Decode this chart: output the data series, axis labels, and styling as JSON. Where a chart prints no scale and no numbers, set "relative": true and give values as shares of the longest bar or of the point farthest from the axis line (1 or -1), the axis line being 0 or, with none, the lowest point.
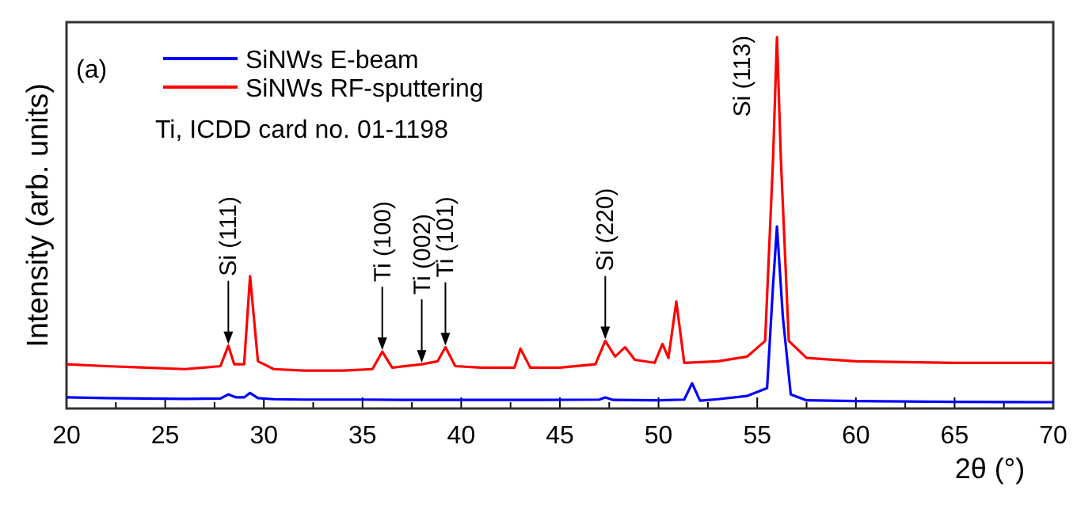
{
  "chart_data": {
    "type": "line",
    "relative": true,
    "xlabel": "2θ (°)",
    "ylabel": "Intensity (arb. units)",
    "xlim": [
      20,
      70
    ],
    "xticks": [
      20,
      {
        "value": 22.5,
        "label": null
      },
      25,
      {
        "value": 27.5,
        "label": null
      },
      30,
      {
        "value": 32.5,
        "label": null
      },
      35,
      {
        "value": 37.5,
        "label": null
      },
      40,
      {
        "value": 42.5,
        "label": null
      },
      45,
      {
        "value": 47.5,
        "label": null
      },
      50,
      {
        "value": 52.5,
        "label": null
      },
      55,
      {
        "value": 57.5,
        "label": null
      },
      60,
      {
        "value": 62.5,
        "label": null
      },
      65,
      {
        "value": 67.5,
        "label": null
      },
      70
    ],
    "tick_labels": "x",
    "legend": "top left",
    "grid": false,
    "marker": "none",
    "line_style": "solid",
    "series": [
      {
        "name": "SiNWs E-beam",
        "color": "#0000ff",
        "x": [
          20,
          22,
          24,
          26,
          27.8,
          28.2,
          28.6,
          29.0,
          29.3,
          29.7,
          30.5,
          32,
          35,
          38,
          41,
          44,
          47.0,
          47.3,
          47.7,
          50,
          51.3,
          51.7,
          52.1,
          53,
          54.5,
          55.5,
          55.8,
          56.0,
          56.3,
          56.7,
          57.5,
          60,
          65,
          70
        ],
        "values": [
          0.03,
          0.028,
          0.027,
          0.026,
          0.027,
          0.038,
          0.03,
          0.03,
          0.042,
          0.028,
          0.025,
          0.024,
          0.024,
          0.023,
          0.023,
          0.023,
          0.024,
          0.03,
          0.023,
          0.022,
          0.024,
          0.068,
          0.021,
          0.025,
          0.034,
          0.055,
          0.33,
          0.49,
          0.246,
          0.038,
          0.022,
          0.02,
          0.018,
          0.017
        ]
      },
      {
        "name": "SiNWs RF-sputtering",
        "color": "#ff0000",
        "x": [
          20,
          22,
          24,
          26,
          27.8,
          28.2,
          28.5,
          29.0,
          29.3,
          29.7,
          30.5,
          32,
          34,
          35.5,
          36.0,
          36.5,
          38,
          38.8,
          39.2,
          39.7,
          41,
          42.7,
          43.0,
          43.5,
          45,
          46.8,
          47.3,
          47.8,
          48.3,
          48.8,
          49.8,
          50.2,
          50.5,
          50.9,
          51.3,
          53,
          54.5,
          55.4,
          55.8,
          56.0,
          56.2,
          56.6,
          57.5,
          60,
          65,
          70
        ],
        "values": [
          0.119,
          0.114,
          0.11,
          0.106,
          0.114,
          0.169,
          0.119,
          0.119,
          0.356,
          0.127,
          0.106,
          0.102,
          0.102,
          0.106,
          0.153,
          0.11,
          0.119,
          0.127,
          0.165,
          0.114,
          0.11,
          0.11,
          0.161,
          0.11,
          0.11,
          0.119,
          0.182,
          0.14,
          0.165,
          0.131,
          0.123,
          0.174,
          0.136,
          0.288,
          0.123,
          0.127,
          0.14,
          0.182,
          0.669,
          1,
          0.669,
          0.182,
          0.136,
          0.127,
          0.123,
          0.123
        ]
      }
    ],
    "annotations": [
      "(a)",
      "Ti, ICDD card no. 01-1198",
      {
        "text": "Si (111)",
        "x": 28.2,
        "y": 0.169
      },
      {
        "text": "Ti (100)",
        "x": 36.0,
        "y": 0.153
      },
      {
        "text": "Ti (002)",
        "x": 38,
        "y": 0.119
      },
      {
        "text": "Ti (101)",
        "x": 39.2,
        "y": 0.165
      },
      {
        "text": "Si (220)",
        "x": 47.3,
        "y": 0.182
      },
      {
        "text": "Si (113)",
        "x": 56.0,
        "y": 1
      }
    ]
  }
}
